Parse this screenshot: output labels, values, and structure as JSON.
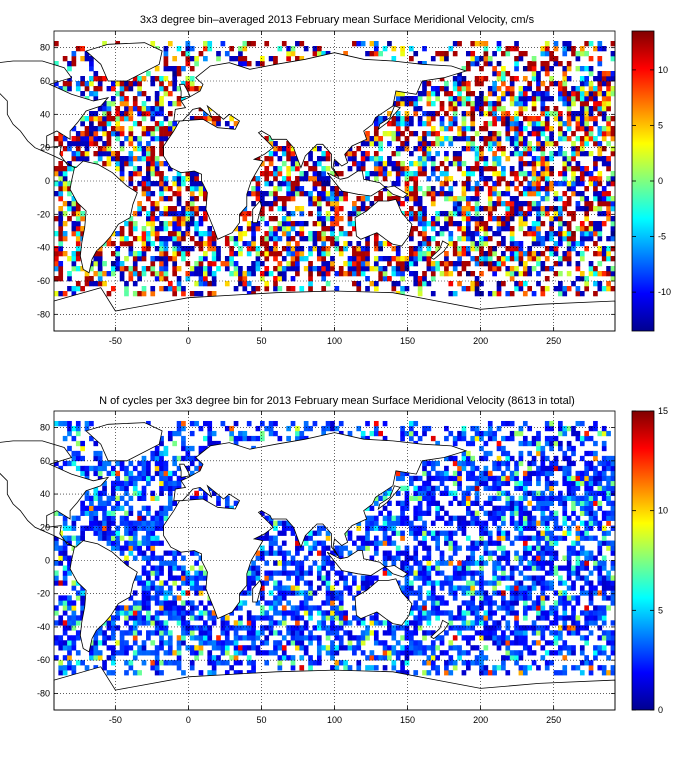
{
  "chart_data": [
    {
      "type": "heatmap",
      "title": "3x3 degree bin–averaged 2013 February mean Surface Meridional Velocity, cm/s",
      "xlim": [
        -92,
        292
      ],
      "ylim": [
        -90,
        90
      ],
      "xticks": [
        -50,
        0,
        50,
        100,
        150,
        200,
        250
      ],
      "yticks": [
        80,
        60,
        40,
        20,
        0,
        -20,
        -40,
        -60,
        -80
      ],
      "bin_size_deg": 3,
      "grid": true,
      "colorbar": {
        "placement": "right",
        "clim": [
          -13.5,
          13.5
        ],
        "ticks": [
          10,
          5,
          0,
          -5,
          -10
        ],
        "colormap": "jet"
      }
    },
    {
      "type": "heatmap",
      "title": "N of cycles per 3x3 degree bin for 2013 February mean Surface Meridional Velocity (8613 in total)",
      "xlim": [
        -92,
        292
      ],
      "ylim": [
        -90,
        90
      ],
      "xticks": [
        -50,
        0,
        50,
        100,
        150,
        200,
        250
      ],
      "yticks": [
        80,
        60,
        40,
        20,
        0,
        -20,
        -40,
        -60,
        -80
      ],
      "bin_size_deg": 3,
      "grid": true,
      "total_cycles": 8613,
      "colorbar": {
        "placement": "right",
        "clim": [
          0,
          15
        ],
        "ticks": [
          15,
          10,
          5,
          0
        ],
        "colormap": "jet"
      }
    }
  ]
}
